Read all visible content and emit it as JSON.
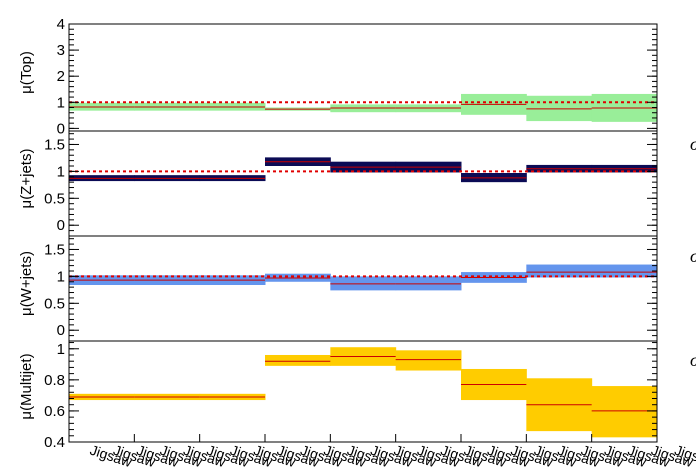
{
  "chart_data": {
    "type": "bar",
    "description_kind": "stacked normalization-factor panels",
    "bins": 9,
    "x_category_labels": [
      "Jigsaw",
      "Jigsaw",
      "Jigsaw",
      "Jigsaw",
      "Jigsaw",
      "Jigsaw",
      "Jigsaw",
      "Jigsaw",
      "Jigsaw",
      "Jigsaw",
      "Jigsaw",
      "Jigsaw",
      "Jigsaw",
      "Jigsaw",
      "Jigsaw",
      "Jigsaw",
      "Jigsaw",
      "Jigsaw",
      "Jigsaw",
      "Jigsaw",
      "Jigsaw",
      "Jigsaw",
      "Jigsaw",
      "Jigsaw",
      "Jigsaw",
      "Jigsaw"
    ],
    "edge_glyph": "σ",
    "panels": [
      {
        "id": "top",
        "ylabel": "μ(Top)",
        "ylim": [
          -0.1,
          4.0
        ],
        "ticks": [
          0,
          1,
          2,
          3,
          4
        ],
        "tick_labels": [
          "0",
          "1",
          "2",
          "3",
          "4"
        ],
        "reference_line": 1,
        "band_color": "#99ee99",
        "value_line_color": "#cc0000",
        "values": [
          0.82,
          0.82,
          0.82,
          0.74,
          0.78,
          0.78,
          0.92,
          0.75,
          0.78
        ],
        "err_low": [
          0.68,
          0.68,
          0.68,
          0.68,
          0.62,
          0.62,
          0.52,
          0.28,
          0.25
        ],
        "err_high": [
          0.98,
          0.98,
          0.98,
          0.8,
          0.92,
          0.92,
          1.32,
          1.25,
          1.32
        ]
      },
      {
        "id": "zjets",
        "ylabel": "μ(Z+jets)",
        "ylim": [
          -0.2,
          1.75
        ],
        "ticks": [
          0,
          0.5,
          1,
          1.5
        ],
        "tick_labels": [
          "0",
          "0.5",
          "1",
          "1.5"
        ],
        "reference_line": 1,
        "band_color": "#0b0b55",
        "value_line_color": "#cc0000",
        "values": [
          0.87,
          0.87,
          0.87,
          1.18,
          1.08,
          1.08,
          0.88,
          1.05,
          1.05
        ],
        "err_low": [
          0.82,
          0.82,
          0.82,
          1.1,
          0.98,
          0.98,
          0.8,
          0.98,
          0.98
        ],
        "err_high": [
          0.93,
          0.93,
          0.93,
          1.26,
          1.18,
          1.18,
          0.97,
          1.12,
          1.12
        ]
      },
      {
        "id": "wjets",
        "ylabel": "μ(W+jets)",
        "ylim": [
          -0.2,
          1.75
        ],
        "ticks": [
          0,
          0.5,
          1,
          1.5
        ],
        "tick_labels": [
          "0",
          "0.5",
          "1",
          "1.5"
        ],
        "reference_line": 1,
        "band_color": "#6495ed",
        "value_line_color": "#cc0000",
        "values": [
          0.93,
          0.93,
          0.93,
          0.97,
          0.86,
          0.86,
          0.98,
          1.08,
          1.08
        ],
        "err_low": [
          0.84,
          0.84,
          0.84,
          0.9,
          0.74,
          0.74,
          0.88,
          0.98,
          0.98
        ],
        "err_high": [
          1.02,
          1.02,
          1.02,
          1.05,
          1.0,
          1.0,
          1.08,
          1.22,
          1.22
        ]
      },
      {
        "id": "multijet",
        "ylabel": "μ(Multijet)",
        "ylim": [
          0.4,
          1.05
        ],
        "ticks": [
          0.4,
          0.6,
          0.8,
          1.0
        ],
        "tick_labels": [
          "0.4",
          "0.6",
          "0.8",
          "1"
        ],
        "reference_line": null,
        "band_color": "#ffcc00",
        "value_line_color": "#cc0000",
        "values": [
          0.69,
          0.69,
          0.69,
          0.92,
          0.95,
          0.93,
          0.77,
          0.64,
          0.6
        ],
        "err_low": [
          0.67,
          0.67,
          0.67,
          0.89,
          0.89,
          0.86,
          0.67,
          0.47,
          0.43
        ],
        "err_high": [
          0.71,
          0.71,
          0.71,
          0.96,
          1.01,
          0.99,
          0.87,
          0.81,
          0.76
        ]
      }
    ]
  }
}
